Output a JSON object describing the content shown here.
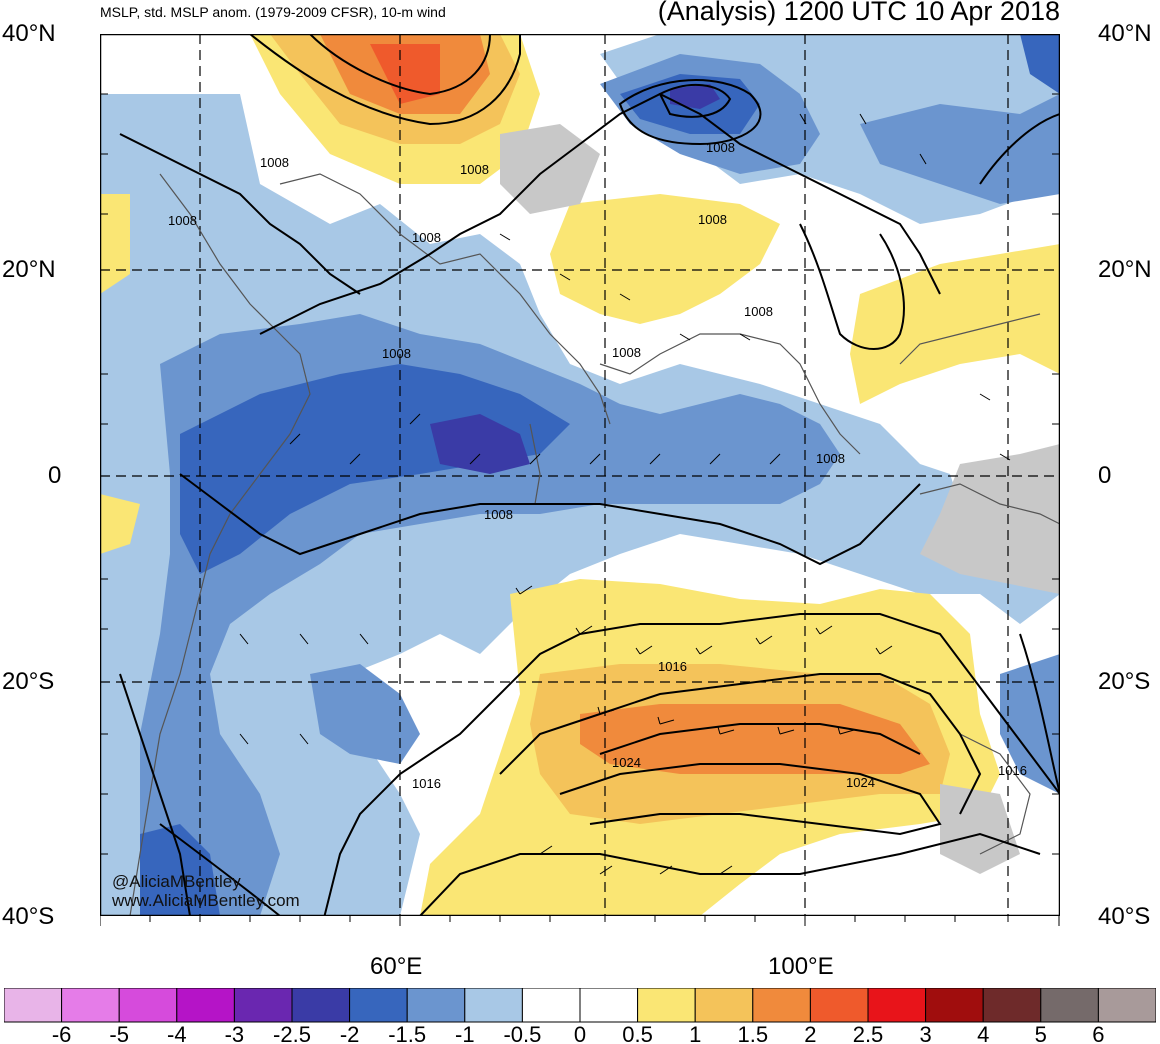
{
  "header": {
    "left_title": "MSLP, std. MSLP anom. (1979-2009 CFSR), 10-m wind",
    "right_title": "(Analysis) 1200 UTC 10 Apr 2018"
  },
  "axes": {
    "lat_labels": [
      "40°N",
      "20°N",
      "0",
      "20°S",
      "40°S"
    ],
    "lon_labels": [
      "60°E",
      "100°E"
    ]
  },
  "contour_labels": [
    "1008",
    "1008",
    "1008",
    "1008",
    "1008",
    "1008",
    "1008",
    "1008",
    "1008",
    "1008",
    "1008",
    "1016",
    "1016",
    "1016",
    "1024",
    "1024"
  ],
  "colorbar": {
    "ticks": [
      "-6",
      "-5",
      "-4",
      "-3",
      "-2.5",
      "-2",
      "-1.5",
      "-1",
      "-0.5",
      "0",
      "0.5",
      "1",
      "1.5",
      "2",
      "2.5",
      "3",
      "4",
      "5",
      "6"
    ],
    "colors": [
      "#e8b4e8",
      "#e57ce8",
      "#d64bdc",
      "#b514c7",
      "#6a27b0",
      "#3a3ba6",
      "#3766bd",
      "#6b95cf",
      "#a8c8e6",
      "#ffffff",
      "#ffffff",
      "#fae674",
      "#f4c35a",
      "#f08a3c",
      "#ef5a2c",
      "#e8141a",
      "#a00d0d",
      "#6e2a2a",
      "#756a6a",
      "#a89a9a"
    ]
  },
  "credit": {
    "line1": "@AliciaMBentley",
    "line2": "www.AliciaMBentley.com"
  }
}
